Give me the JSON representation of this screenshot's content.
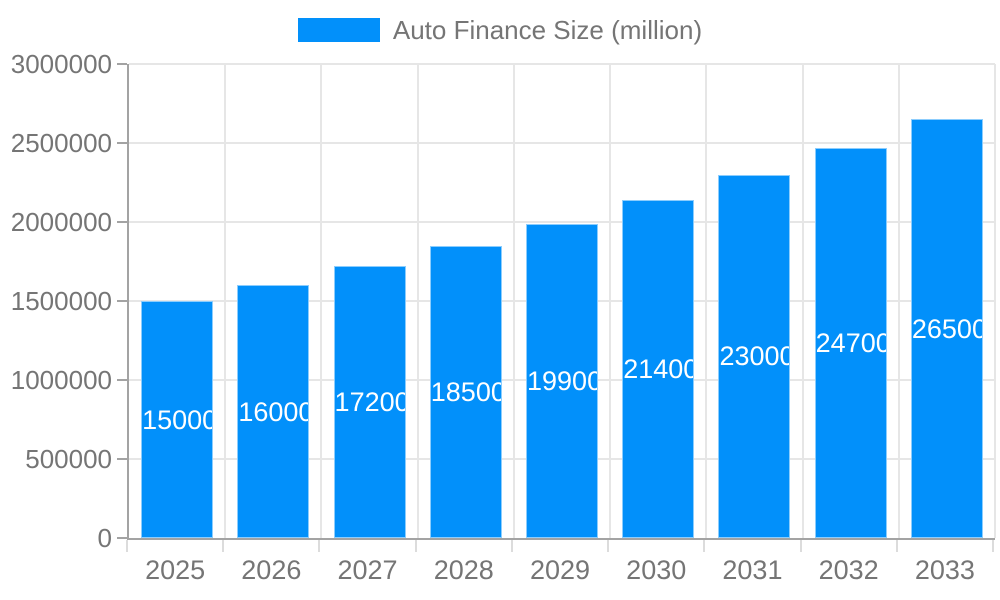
{
  "legend": {
    "label": "Auto Finance Size (million)",
    "swatch_color": "#0290fa"
  },
  "chart_data": {
    "type": "bar",
    "title": "Auto Finance Size (million)",
    "categories": [
      "2025",
      "2026",
      "2027",
      "2028",
      "2029",
      "2030",
      "2031",
      "2032",
      "2033"
    ],
    "series": [
      {
        "name": "Auto Finance Size (million)",
        "values": [
          1500000,
          1600000,
          1720000,
          1850000,
          1990000,
          2140000,
          2300000,
          2470000,
          2650000
        ]
      }
    ],
    "xlabel": "",
    "ylabel": "",
    "ylim": [
      0,
      3000000
    ],
    "yticks": [
      0,
      500000,
      1000000,
      1500000,
      2000000,
      2500000,
      3000000
    ],
    "grid": true,
    "legend_position": "top",
    "bar_color": "#0290fa",
    "bar_label_color": "#ffffff",
    "axis_text_color": "#757575",
    "gridline_color": "#e6e6e6"
  }
}
